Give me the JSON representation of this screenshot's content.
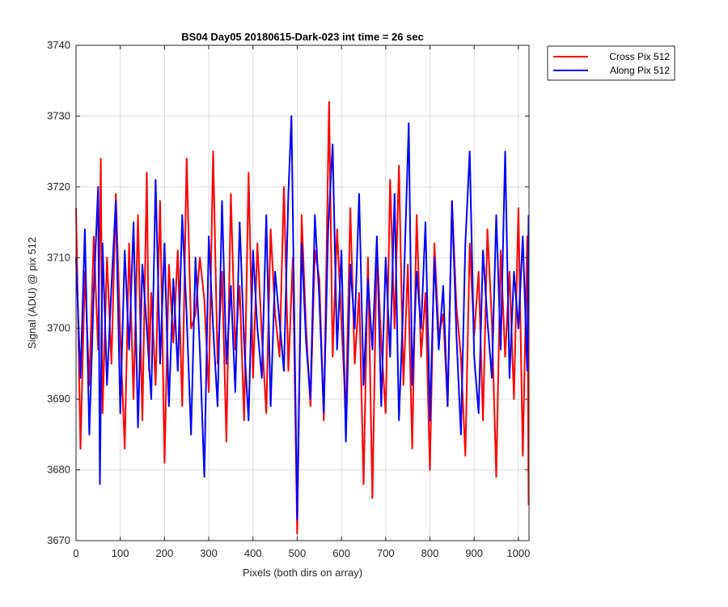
{
  "chart_data": {
    "type": "line",
    "title": "BS04 Day05 20180615-Dark-023 int time = 26 sec",
    "xlabel": "Pixels (both dirs on array)",
    "ylabel": "Signal (ADU) @ pix 512",
    "xlim": [
      0,
      1024
    ],
    "ylim": [
      3670,
      3740
    ],
    "xticks": [
      "0",
      "100",
      "200",
      "300",
      "400",
      "500",
      "600",
      "700",
      "800",
      "900",
      "1000"
    ],
    "yticks": [
      "3670",
      "3680",
      "3690",
      "3700",
      "3710",
      "3720",
      "3730",
      "3740"
    ],
    "grid": true,
    "legend_position": "outside-top-right",
    "series": [
      {
        "name": "Cross Pix 512",
        "color": "#ff0000",
        "x": [
          0,
          10,
          20,
          30,
          40,
          50,
          56,
          60,
          70,
          80,
          90,
          100,
          110,
          120,
          130,
          140,
          150,
          160,
          165,
          170,
          180,
          190,
          200,
          210,
          220,
          230,
          240,
          250,
          260,
          270,
          280,
          290,
          300,
          310,
          320,
          330,
          340,
          350,
          360,
          370,
          380,
          390,
          400,
          410,
          420,
          430,
          440,
          450,
          460,
          470,
          480,
          490,
          500,
          510,
          520,
          530,
          540,
          550,
          560,
          572,
          580,
          590,
          600,
          610,
          620,
          630,
          640,
          650,
          660,
          670,
          680,
          690,
          700,
          710,
          720,
          730,
          740,
          750,
          760,
          770,
          780,
          790,
          800,
          810,
          820,
          830,
          840,
          850,
          860,
          870,
          880,
          890,
          900,
          910,
          920,
          930,
          940,
          950,
          960,
          970,
          980,
          990,
          1000,
          1010,
          1020,
          1023
        ],
        "y": [
          3717,
          3683,
          3708,
          3692,
          3713,
          3697,
          3724,
          3688,
          3710,
          3695,
          3719,
          3699,
          3683,
          3712,
          3690,
          3716,
          3687,
          3722,
          3694,
          3705,
          3692,
          3718,
          3681,
          3709,
          3698,
          3711,
          3689,
          3724,
          3700,
          3702,
          3710,
          3704,
          3691,
          3725,
          3695,
          3708,
          3684,
          3719,
          3697,
          3706,
          3687,
          3722,
          3693,
          3712,
          3699,
          3688,
          3714,
          3702,
          3696,
          3720,
          3694,
          3710,
          3671,
          3716,
          3700,
          3689,
          3711,
          3707,
          3687,
          3732,
          3696,
          3714,
          3701,
          3688,
          3717,
          3695,
          3705,
          3678,
          3710,
          3676,
          3712,
          3698,
          3688,
          3721,
          3700,
          3723,
          3692,
          3709,
          3683,
          3716,
          3696,
          3705,
          3680,
          3712,
          3699,
          3702,
          3689,
          3718,
          3703,
          3696,
          3682,
          3712,
          3699,
          3708,
          3687,
          3714,
          3701,
          3679,
          3711,
          3696,
          3708,
          3690,
          3717,
          3682,
          3713,
          3675
        ]
      },
      {
        "name": "Along Pix 512",
        "color": "#0000ff",
        "x": [
          0,
          10,
          20,
          30,
          40,
          50,
          54,
          60,
          70,
          80,
          90,
          100,
          110,
          120,
          130,
          140,
          150,
          160,
          170,
          180,
          190,
          200,
          210,
          220,
          230,
          240,
          250,
          260,
          270,
          280,
          290,
          300,
          310,
          320,
          330,
          340,
          350,
          360,
          370,
          380,
          390,
          400,
          410,
          420,
          430,
          440,
          450,
          460,
          470,
          480,
          487,
          500,
          510,
          520,
          530,
          540,
          550,
          560,
          570,
          580,
          590,
          600,
          610,
          620,
          630,
          640,
          650,
          660,
          670,
          680,
          690,
          700,
          710,
          720,
          730,
          740,
          752,
          760,
          770,
          780,
          790,
          800,
          810,
          820,
          830,
          840,
          850,
          860,
          870,
          880,
          890,
          900,
          910,
          920,
          930,
          940,
          950,
          960,
          970,
          980,
          990,
          1000,
          1010,
          1020,
          1023
        ],
        "y": [
          3710,
          3693,
          3714,
          3685,
          3705,
          3720,
          3678,
          3712,
          3692,
          3706,
          3718,
          3688,
          3711,
          3697,
          3715,
          3686,
          3709,
          3700,
          3690,
          3721,
          3695,
          3712,
          3689,
          3707,
          3694,
          3716,
          3702,
          3685,
          3710,
          3697,
          3679,
          3713,
          3700,
          3689,
          3718,
          3695,
          3706,
          3691,
          3715,
          3698,
          3687,
          3711,
          3700,
          3693,
          3716,
          3689,
          3708,
          3701,
          3694,
          3719,
          3730,
          3673,
          3712,
          3698,
          3690,
          3716,
          3704,
          3688,
          3714,
          3726,
          3697,
          3711,
          3684,
          3709,
          3700,
          3719,
          3692,
          3707,
          3697,
          3713,
          3689,
          3710,
          3696,
          3719,
          3687,
          3704,
          3729,
          3692,
          3708,
          3700,
          3715,
          3687,
          3710,
          3697,
          3706,
          3689,
          3718,
          3699,
          3685,
          3712,
          3725,
          3696,
          3688,
          3711,
          3701,
          3693,
          3716,
          3697,
          3725,
          3693,
          3708,
          3700,
          3713,
          3694,
          3716
        ]
      }
    ]
  }
}
